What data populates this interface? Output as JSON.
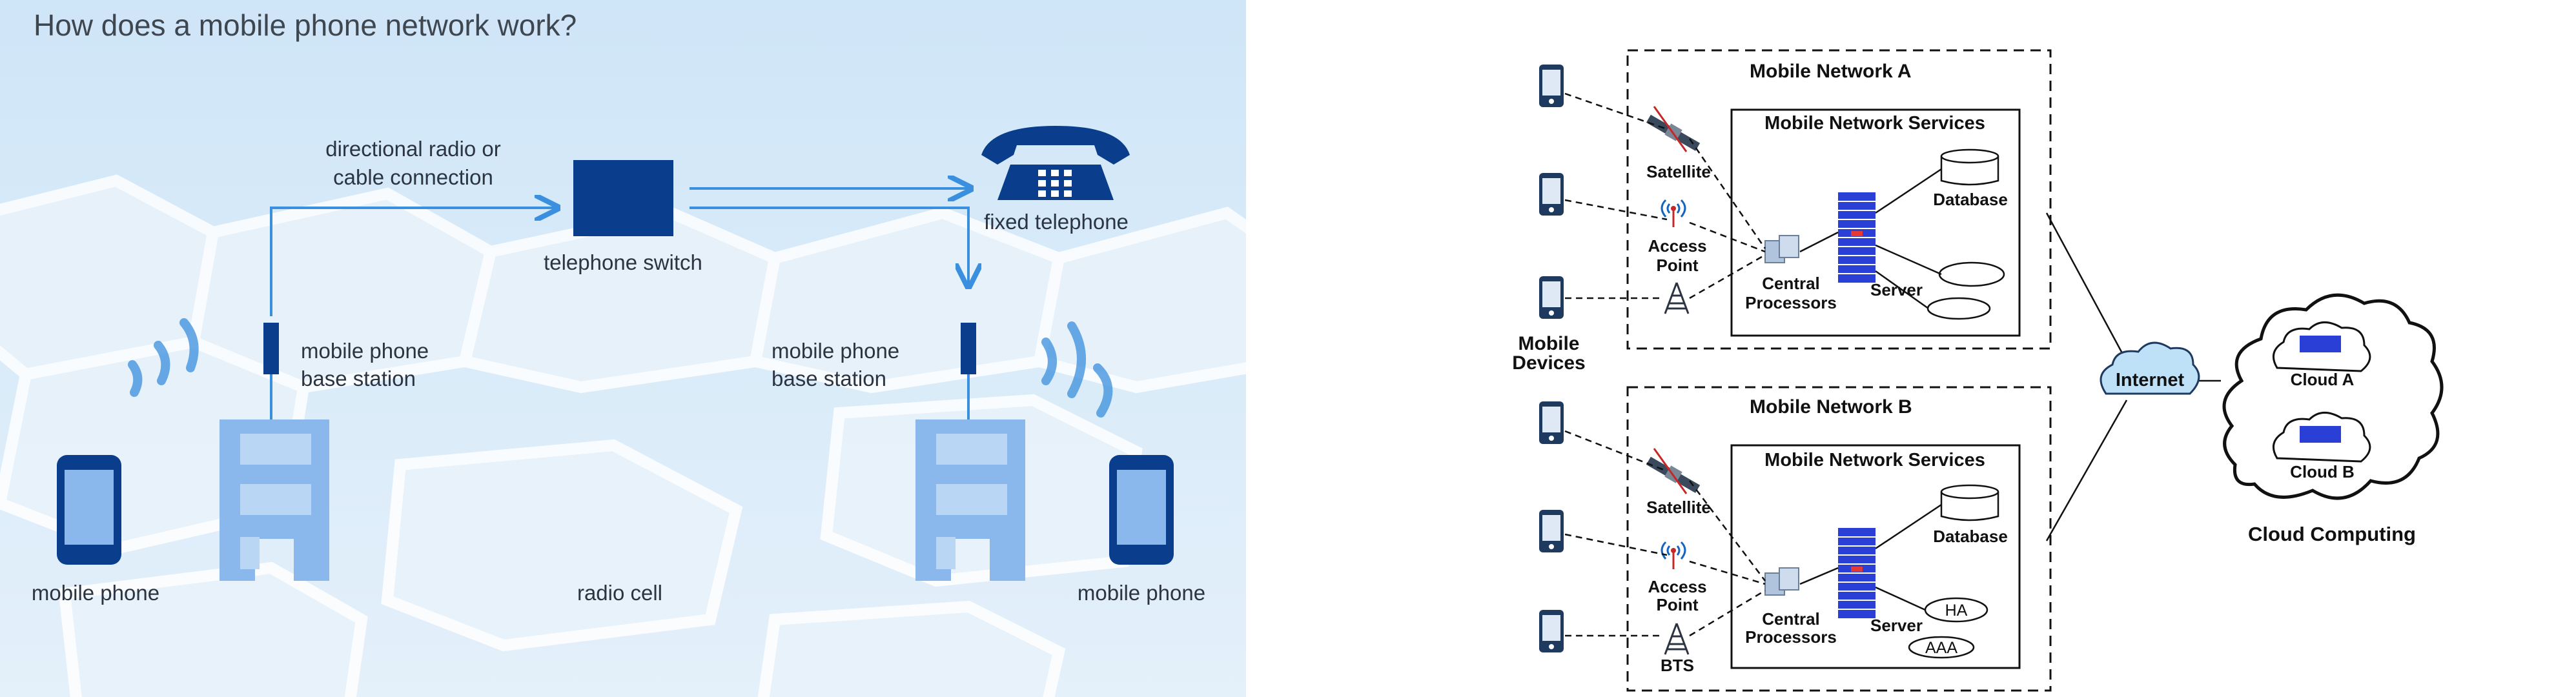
{
  "left_diagram": {
    "title": "How does a mobile phone network work?",
    "labels": {
      "directional_radio": "directional radio or",
      "cable_connection": "cable connection",
      "telephone_switch": "telephone switch",
      "fixed_telephone": "fixed telephone",
      "base_station_left_line1": "mobile phone",
      "base_station_left_line2": "base station",
      "base_station_right_line1": "mobile phone",
      "base_station_right_line2": "base station",
      "mobile_phone_left": "mobile phone",
      "radio_cell": "radio cell",
      "mobile_phone_right": "mobile phone"
    },
    "colors": {
      "accent_dark": "#0a3e8c",
      "building": "#8ab7ec",
      "line": "#3a8fde",
      "background": "#dcebf8"
    }
  },
  "right_diagram": {
    "network_a": {
      "title": "Mobile Network A",
      "services_title": "Mobile Network Services",
      "satellite": "Satellite",
      "access_point_1": "Access",
      "access_point_2": "Point",
      "central_1": "Central",
      "central_2": "Processors",
      "server": "Server",
      "database": "Database"
    },
    "network_b": {
      "title": "Mobile Network B",
      "services_title": "Mobile Network Services",
      "satellite": "Satellite",
      "access_point_1": "Access",
      "access_point_2": "Point",
      "bts": "BTS",
      "central_1": "Central",
      "central_2": "Processors",
      "server": "Server",
      "database": "Database",
      "ha": "HA",
      "aaa": "AAA"
    },
    "mobile_devices_1": "Mobile",
    "mobile_devices_2": "Devices",
    "internet": "Internet",
    "cloud_a": "Cloud A",
    "cloud_b": "Cloud B",
    "cloud_computing": "Cloud Computing",
    "colors": {
      "server": "#2a3fd6",
      "internet": "#bfe1f7",
      "device": "#1e3a5f"
    }
  }
}
